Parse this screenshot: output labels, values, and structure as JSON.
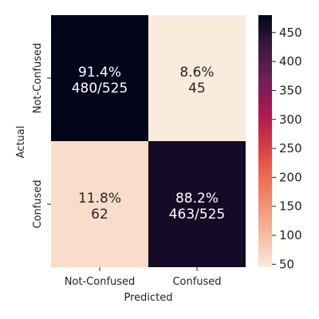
{
  "chart_data": {
    "type": "heatmap",
    "xlabel": "Predicted",
    "ylabel": "Actual",
    "x_categories": [
      "Not-Confused",
      "Confused"
    ],
    "y_categories": [
      "Not-Confused",
      "Confused"
    ],
    "values": [
      [
        480,
        45
      ],
      [
        62,
        463
      ]
    ],
    "annotations": [
      [
        {
          "pct": "91.4%",
          "frac": "480/525"
        },
        {
          "pct": "8.6%",
          "frac": "45"
        }
      ],
      [
        {
          "pct": "11.8%",
          "frac": "62"
        },
        {
          "pct": "88.2%",
          "frac": "463/525"
        }
      ]
    ],
    "colorbar": {
      "range": [
        45,
        480
      ],
      "ticks": [
        50,
        100,
        150,
        200,
        250,
        300,
        350,
        400,
        450
      ],
      "colormap": "rocket_r",
      "colors": {
        "low": "#faebdd",
        "high": "#03051a"
      }
    }
  }
}
